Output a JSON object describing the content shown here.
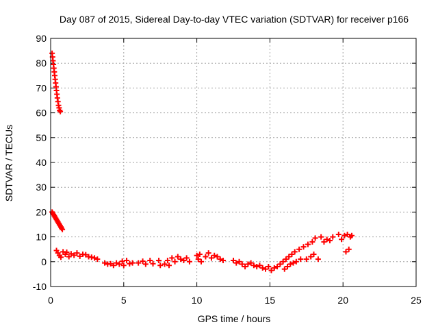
{
  "chart_data": {
    "type": "scatter",
    "title": "Day 087 of 2015, Sidereal Day-to-day VTEC variation (SDTVAR) for receiver p166",
    "xlabel": "GPS time / hours",
    "ylabel": "SDTVAR / TECUs",
    "xlim": [
      0,
      25
    ],
    "ylim": [
      -10,
      90
    ],
    "xticks": [
      "0",
      "5",
      "10",
      "15",
      "20",
      "25"
    ],
    "yticks": [
      "-10",
      "0",
      "10",
      "20",
      "30",
      "40",
      "50",
      "60",
      "70",
      "80",
      "90"
    ],
    "grid": true,
    "marker_color": "#ff0000",
    "series": [
      {
        "name": "SDTVAR",
        "points": [
          [
            0.1,
            84
          ],
          [
            0.13,
            82.5
          ],
          [
            0.16,
            81
          ],
          [
            0.19,
            79.5
          ],
          [
            0.22,
            78
          ],
          [
            0.25,
            76.5
          ],
          [
            0.28,
            75
          ],
          [
            0.31,
            73.5
          ],
          [
            0.34,
            72
          ],
          [
            0.37,
            70.5
          ],
          [
            0.4,
            69
          ],
          [
            0.43,
            67.5
          ],
          [
            0.46,
            66
          ],
          [
            0.5,
            64.5
          ],
          [
            0.54,
            63
          ],
          [
            0.58,
            62
          ],
          [
            0.62,
            61
          ],
          [
            0.66,
            60.5
          ],
          [
            0.1,
            20
          ],
          [
            0.15,
            19.5
          ],
          [
            0.2,
            19
          ],
          [
            0.25,
            18.5
          ],
          [
            0.3,
            18
          ],
          [
            0.35,
            17.5
          ],
          [
            0.4,
            17
          ],
          [
            0.45,
            16.5
          ],
          [
            0.5,
            16
          ],
          [
            0.55,
            15.5
          ],
          [
            0.6,
            15
          ],
          [
            0.65,
            14.5
          ],
          [
            0.7,
            14
          ],
          [
            0.75,
            13.5
          ],
          [
            0.8,
            13
          ],
          [
            0.4,
            4.5
          ],
          [
            0.5,
            3.5
          ],
          [
            0.6,
            2.5
          ],
          [
            0.7,
            1.8
          ],
          [
            0.85,
            4.0
          ],
          [
            1.0,
            3.0
          ],
          [
            1.1,
            3.8
          ],
          [
            1.25,
            2.0
          ],
          [
            1.4,
            3.2
          ],
          [
            1.6,
            2.6
          ],
          [
            1.8,
            3.5
          ],
          [
            2.0,
            2.2
          ],
          [
            2.2,
            3.0
          ],
          [
            2.4,
            2.8
          ],
          [
            2.6,
            2.0
          ],
          [
            2.8,
            1.8
          ],
          [
            3.0,
            1.5
          ],
          [
            3.2,
            1.0
          ],
          [
            3.7,
            -0.5
          ],
          [
            3.9,
            -1.0
          ],
          [
            4.1,
            -0.8
          ],
          [
            4.3,
            -1.5
          ],
          [
            4.5,
            -0.5
          ],
          [
            4.7,
            -1.0
          ],
          [
            4.9,
            0.2
          ],
          [
            5.0,
            -1.5
          ],
          [
            5.2,
            0.5
          ],
          [
            5.4,
            -0.8
          ],
          [
            5.6,
            -0.5
          ],
          [
            6.0,
            -0.5
          ],
          [
            6.3,
            0.2
          ],
          [
            6.5,
            -1.0
          ],
          [
            6.8,
            0.5
          ],
          [
            7.0,
            -0.8
          ],
          [
            7.4,
            0.5
          ],
          [
            7.5,
            -1.5
          ],
          [
            7.8,
            -1.0
          ],
          [
            8.0,
            0.5
          ],
          [
            8.1,
            -1.5
          ],
          [
            8.3,
            1.5
          ],
          [
            8.5,
            0.0
          ],
          [
            8.7,
            2.0
          ],
          [
            8.9,
            1.0
          ],
          [
            9.1,
            0.5
          ],
          [
            9.3,
            1.5
          ],
          [
            9.5,
            0.0
          ],
          [
            10.0,
            2.5
          ],
          [
            10.1,
            1.0
          ],
          [
            10.2,
            3.0
          ],
          [
            10.3,
            0.0
          ],
          [
            10.6,
            2.0
          ],
          [
            10.8,
            3.5
          ],
          [
            11.0,
            1.5
          ],
          [
            11.2,
            2.5
          ],
          [
            11.4,
            2.0
          ],
          [
            11.6,
            1.0
          ],
          [
            11.8,
            0.5
          ],
          [
            12.5,
            0.5
          ],
          [
            12.7,
            -0.5
          ],
          [
            12.9,
            0.0
          ],
          [
            13.1,
            -1.0
          ],
          [
            13.3,
            -2.0
          ],
          [
            13.5,
            -1.0
          ],
          [
            13.7,
            -0.5
          ],
          [
            13.9,
            -1.5
          ],
          [
            14.1,
            -2.0
          ],
          [
            14.3,
            -1.5
          ],
          [
            14.5,
            -2.5
          ],
          [
            14.7,
            -3.0
          ],
          [
            14.9,
            -2.0
          ],
          [
            15.1,
            -3.5
          ],
          [
            15.3,
            -2.5
          ],
          [
            15.5,
            -2.0
          ],
          [
            15.7,
            -1.0
          ],
          [
            15.9,
            0.0
          ],
          [
            16.0,
            -3.0
          ],
          [
            16.1,
            1.0
          ],
          [
            16.2,
            -2.0
          ],
          [
            16.3,
            2.0
          ],
          [
            16.4,
            -1.0
          ],
          [
            16.5,
            3.0
          ],
          [
            16.6,
            -0.5
          ],
          [
            16.7,
            4.0
          ],
          [
            16.8,
            0.0
          ],
          [
            17.0,
            5.0
          ],
          [
            17.1,
            1.0
          ],
          [
            17.3,
            6.0
          ],
          [
            17.5,
            1.0
          ],
          [
            17.6,
            7.0
          ],
          [
            17.8,
            2.0
          ],
          [
            17.9,
            8.0
          ],
          [
            18.0,
            3.0
          ],
          [
            18.1,
            9.5
          ],
          [
            18.3,
            1.0
          ],
          [
            18.5,
            10.0
          ],
          [
            18.7,
            8.0
          ],
          [
            18.9,
            9.0
          ],
          [
            19.1,
            8.5
          ],
          [
            19.3,
            10.0
          ],
          [
            19.7,
            11.0
          ],
          [
            19.9,
            9.0
          ],
          [
            20.1,
            10.5
          ],
          [
            20.2,
            4.0
          ],
          [
            20.3,
            11.0
          ],
          [
            20.4,
            5.0
          ],
          [
            20.5,
            10.0
          ],
          [
            20.6,
            10.5
          ]
        ]
      }
    ]
  }
}
